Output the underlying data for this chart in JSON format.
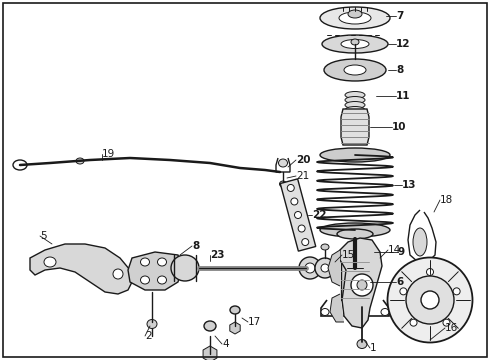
{
  "background_color": "#ffffff",
  "border_color": "#000000",
  "figsize": [
    4.9,
    3.6
  ],
  "dpi": 100,
  "label_fontsize": 7.5,
  "border_linewidth": 1.0,
  "dark": "#1a1a1a",
  "gray": "#888888",
  "light_gray": "#cccccc",
  "mid_gray": "#aaaaaa"
}
